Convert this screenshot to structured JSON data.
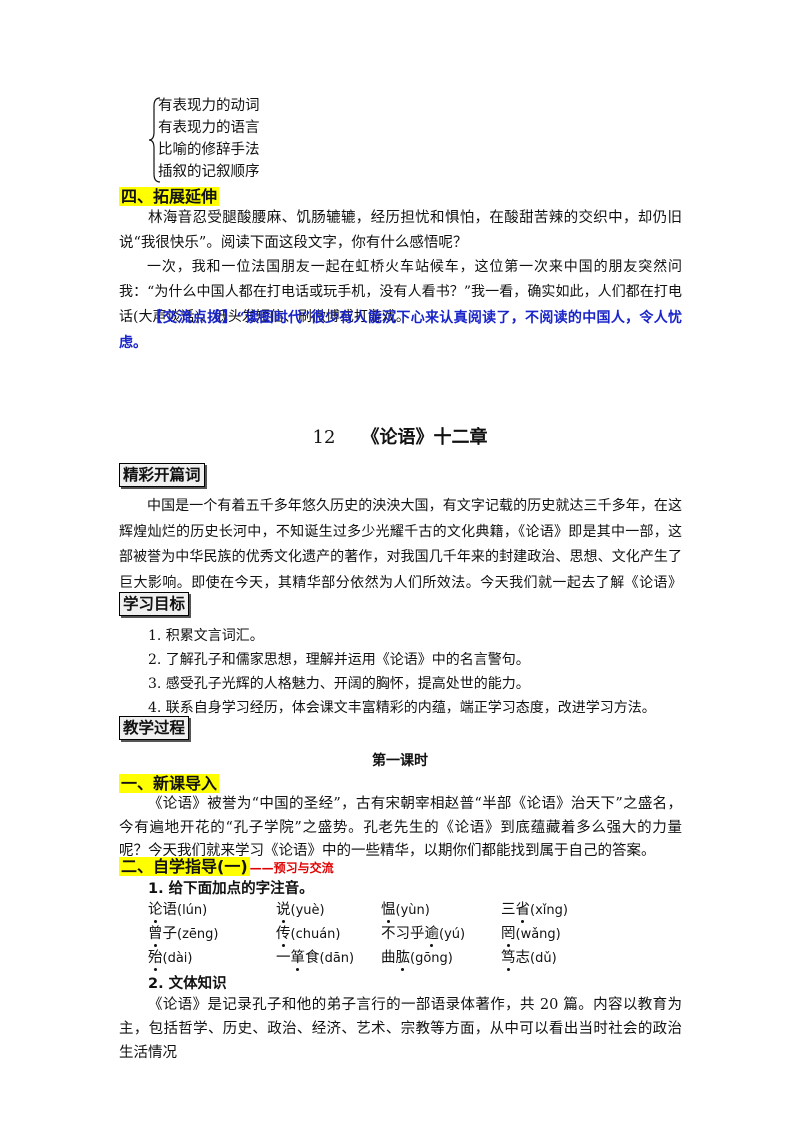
{
  "brace_list": [
    "有表现力的动词",
    "有表现力的语言",
    "比喻的修辞手法",
    "插叙的记叙顺序"
  ],
  "section4": {
    "title": "四、拓展延伸",
    "intro": "林海音忍受腿酸腰麻、饥肠辘辘，经历担忧和惧怕，在酸甜苦辣的交织中，却仍旧说“我很快乐”。阅读下面这段文字，你有什么感悟呢？",
    "passage": "一次，我和一位法国朋友一起在虹桥火车站候车，这位第一次来中国的朋友突然问我：“为什么中国人都在打电话或玩手机，没有人看书？”我一看，确实如此，人们都在打电话(大声谈话)、低头发短信、刷微博或打游戏。",
    "tip_label": "【交流点拨】",
    "tip_text": "“读图时代”很少有人能沉下心来认真阅读了，不阅读的中国人，令人忧虑。"
  },
  "lesson": {
    "number": "12",
    "title": "《论语》十二章"
  },
  "opening": {
    "title": "精彩开篇词",
    "text": "中国是一个有着五千多年悠久历史的泱泱大国，有文字记载的历史就达三千多年，在这辉煌灿烂的历史长河中，不知诞生过多少光耀千古的文化典籍，《论语》即是其中一部，这部被誉为中华民族的优秀文化遗产的著作，对我国几千年来的封建政治、思想、文化产生了巨大影响。即使在今天，其精华部分依然为人们所效法。今天我们就一起去了解《论语》吧。"
  },
  "goals": {
    "title": "学习目标",
    "items": [
      "1. 积累文言词汇。",
      "2. 了解孔子和儒家思想，理解并运用《论语》中的名言警句。",
      "3. 感受孔子光辉的人格魅力、开阔的胸怀，提高处世的能力。",
      "4. 联系自身学习经历，体会课文丰富精彩的内蕴，端正学习态度，改进学习方法。"
    ]
  },
  "process": {
    "title": "教学过程",
    "period": "第一课时"
  },
  "section1": {
    "title": "一、新课导入",
    "text": "《论语》被誉为“中国的圣经”，古有宋朝宰相赵普“半部《论语》治天下”之盛名，今有遍地开花的“孔子学院”之盛势。孔老先生的《论语》到底蕴藏着多么强大的力量呢？今天我们就来学习《论语》中的一些精华，以期你们都能找到属于自己的答案。"
  },
  "section2": {
    "title": "二、自学指导(一)",
    "subtitle": "——预习与交流",
    "q1": "1. 给下面加点的字注音。",
    "rows": [
      [
        {
          "pre": "",
          "dot": "论",
          "post": "语",
          "py": "(lún)"
        },
        {
          "pre": "",
          "dot": "说",
          "post": "",
          "py": "(yuè)"
        },
        {
          "pre": "",
          "dot": "愠",
          "post": "",
          "py": "(yùn)"
        },
        {
          "pre": "三",
          "dot": "省",
          "post": "",
          "py": "(xǐng)"
        }
      ],
      [
        {
          "pre": "",
          "dot": "曾",
          "post": "子",
          "py": "(zēng)"
        },
        {
          "pre": "",
          "dot": "传",
          "post": "",
          "py": "(chuán)"
        },
        {
          "pre": "不习乎",
          "dot": "逾",
          "post": "",
          "py": "(yú)"
        },
        {
          "pre": "",
          "dot": "罔",
          "post": "",
          "py": "(wǎng)"
        }
      ],
      [
        {
          "pre": "",
          "dot": "殆",
          "post": "",
          "py": "(dài)"
        },
        {
          "pre": "一",
          "dot": "箪",
          "post": "食",
          "py": "(dān)"
        },
        {
          "pre": "曲",
          "dot": "肱",
          "post": "",
          "py": "(gōng)"
        },
        {
          "pre": "",
          "dot": "笃",
          "post": "志",
          "py": "(dǔ)"
        }
      ]
    ],
    "q2": "2. 文体知识",
    "q2_text": "《论语》是记录孔子和他的弟子言行的一部语录体著作，共 20 篇。内容以教育为主，包括哲学、历史、政治、经济、艺术、宗教等方面，从中可以看出当时社会的政治生活情况"
  }
}
